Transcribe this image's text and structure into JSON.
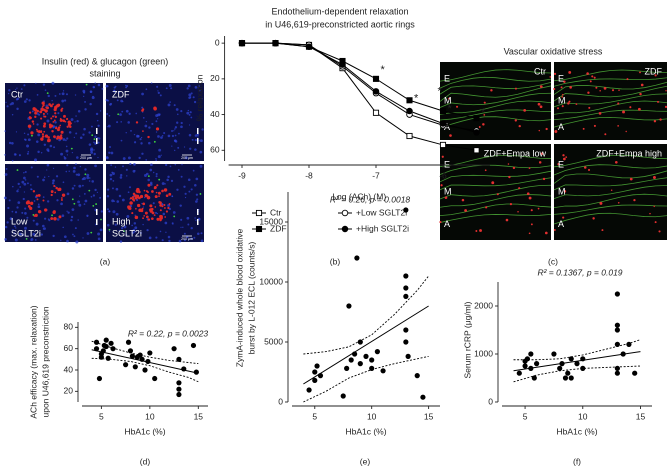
{
  "image_panels": {
    "a": {
      "title": [
        "Insulin (red) & glucagon (green)",
        "staining"
      ],
      "caption": "(a)",
      "tiles": [
        {
          "label": [
            "Ctr"
          ],
          "scale": "200 μm"
        },
        {
          "label": [
            "ZDF"
          ],
          "scale": "200 μm"
        },
        {
          "label": [
            "Low",
            "SGLT2i"
          ]
        },
        {
          "label": [
            "High",
            "SGLT2i"
          ],
          "scale": "200 μm"
        }
      ]
    },
    "c": {
      "title": [
        "Vascular oxidative stress"
      ],
      "caption": "(c)",
      "layers": [
        "E",
        "M",
        "A"
      ],
      "tiles": [
        {
          "label": [
            "Ctr"
          ]
        },
        {
          "label": [
            "ZDF"
          ]
        },
        {
          "label": [
            "ZDF+Empa low"
          ]
        },
        {
          "label": [
            "ZDF+Empa high"
          ]
        }
      ]
    }
  },
  "chart_data": [
    {
      "type": "line",
      "title": [
        "Endothelium-dependent relaxation",
        "in U46,619-preconstricted aortic rings"
      ],
      "ylabel": [
        "% relaxation"
      ],
      "xlabel": "Log (ACh) (M)",
      "caption": "(b)",
      "x": [
        -9,
        -8.5,
        -8,
        -7.5,
        -7,
        -6.5,
        -6,
        -5.5
      ],
      "xlim": [
        -9.2,
        -5.3
      ],
      "xticks": [
        -9,
        -8,
        -7,
        -6
      ],
      "ylim": [
        -4,
        66
      ],
      "yticks": [
        0,
        20,
        40,
        60
      ],
      "y_inverted": true,
      "series": [
        {
          "name": "Ctr",
          "color": "#000000",
          "marker": "square-open",
          "values": [
            0,
            0,
            1,
            14,
            39,
            52,
            57,
            60
          ]
        },
        {
          "name": "ZDF",
          "color": "#000000",
          "marker": "square",
          "values": [
            0,
            0,
            2,
            10,
            20,
            32,
            38,
            42
          ]
        },
        {
          "name": "+Low SGLT2i",
          "color": "#000000",
          "marker": "circle-open",
          "values": [
            0,
            0,
            1,
            13,
            28,
            40,
            46,
            49
          ]
        },
        {
          "name": "+High SGLT2i",
          "color": "#000000",
          "marker": "circle",
          "values": [
            0,
            0,
            2,
            12,
            27,
            38,
            45,
            50
          ]
        }
      ],
      "annotations": [
        {
          "text": "*",
          "x": -6.9,
          "y": 15
        },
        {
          "text": "*",
          "x": -6.4,
          "y": 31
        },
        {
          "text": "*",
          "x": -6.05,
          "y": 27
        },
        {
          "text": "*",
          "x": -5.9,
          "y": 37
        },
        {
          "text": "*",
          "x": -5.4,
          "y": 39
        }
      ]
    },
    {
      "type": "scatter",
      "ylabel": [
        "ACh efficacy (max. relaxation)",
        "upon U46,619 preconstriction"
      ],
      "xlabel": "HbA1c (%)",
      "caption": "(d)",
      "annotation": "R² = 0.22, p = 0.0023",
      "color": "#000000",
      "xlim": [
        3,
        16
      ],
      "xticks": [
        5,
        10,
        15
      ],
      "ylim": [
        10,
        85
      ],
      "yticks": [
        20,
        40,
        60,
        80
      ],
      "x": [
        4.5,
        4.5,
        4.8,
        5,
        5,
        5.2,
        5.3,
        5.5,
        5.5,
        5.7,
        6,
        6.2,
        7.5,
        7.8,
        8,
        8.2,
        8.5,
        8.7,
        9,
        9.2,
        9.5,
        9.8,
        10,
        10.5,
        12.5,
        13,
        13,
        13,
        13,
        13.5,
        14.5,
        14.8
      ],
      "values": [
        66,
        60,
        32,
        52,
        55,
        58,
        63,
        68,
        62,
        51,
        65,
        60,
        45,
        66,
        58,
        53,
        43,
        52,
        54,
        50,
        40,
        48,
        56,
        32,
        60,
        50,
        28,
        22,
        17,
        41,
        63,
        38
      ],
      "fit": {
        "x": [
          4,
          15
        ],
        "values": [
          59,
          37
        ]
      },
      "band": {
        "x": [
          4,
          6,
          8,
          10,
          12,
          14,
          15
        ],
        "upper": [
          67,
          61,
          56,
          52,
          49,
          47,
          46
        ],
        "lower": [
          51,
          50,
          48,
          44,
          38,
          33,
          29
        ]
      }
    },
    {
      "type": "scatter",
      "ylabel": [
        "ZymA-induced whole blood oxidative",
        "burst by L-012 ECL (counts/s)"
      ],
      "xlabel": "HbA1c (%)",
      "caption": "(e)",
      "annotation": "R² = 0.26, p = 0.0018",
      "color": "#000000",
      "xlim": [
        3,
        16
      ],
      "xticks": [
        5,
        10,
        15
      ],
      "ylim": [
        0,
        17500
      ],
      "yticks": [
        0,
        5000,
        10000,
        15000
      ],
      "x": [
        4.5,
        5,
        5,
        5.2,
        5.5,
        7.5,
        7.8,
        8,
        8.2,
        8.5,
        8.7,
        9,
        9,
        9.5,
        10,
        10,
        10.5,
        11,
        13,
        13,
        13,
        13,
        13,
        13,
        13.2,
        14,
        14.5
      ],
      "values": [
        1000,
        2500,
        1800,
        3000,
        2200,
        500,
        2800,
        8000,
        3500,
        4000,
        12000,
        5000,
        3200,
        3800,
        3500,
        2800,
        4200,
        2600,
        16000,
        10500,
        9500,
        8800,
        6000,
        5000,
        3800,
        2200,
        400
      ],
      "fit": {
        "x": [
          4,
          15
        ],
        "values": [
          1500,
          8000
        ]
      },
      "band": {
        "x": [
          4,
          6,
          8,
          10,
          12,
          14,
          15
        ],
        "upper": [
          4000,
          4200,
          4600,
          5600,
          7300,
          9300,
          10500
        ],
        "lower": [
          0,
          900,
          2000,
          2700,
          3200,
          3600,
          3800
        ]
      }
    },
    {
      "type": "scatter",
      "ylabel": [
        "Serum rCRP (μg/ml)"
      ],
      "xlabel": "HbA1c (%)",
      "caption": "(f)",
      "annotation": "R² = 0.1367, p = 0.019",
      "color": "#000000",
      "xlim": [
        3,
        16
      ],
      "xticks": [
        5,
        10,
        15
      ],
      "ylim": [
        0,
        2500
      ],
      "yticks": [
        0,
        1000,
        2000
      ],
      "x": [
        4.5,
        5,
        5,
        5.2,
        5.5,
        5.5,
        5.8,
        6,
        7.5,
        8,
        8.2,
        8.5,
        8.7,
        9,
        9,
        9.5,
        10,
        10,
        13,
        13,
        13,
        13,
        13,
        13,
        13.5,
        14,
        14.5
      ],
      "values": [
        600,
        750,
        850,
        900,
        1000,
        700,
        500,
        800,
        1000,
        700,
        800,
        500,
        600,
        500,
        900,
        800,
        900,
        700,
        2250,
        1600,
        1500,
        1200,
        700,
        600,
        1000,
        1200,
        600
      ],
      "fit": {
        "x": [
          4,
          15
        ],
        "values": [
          650,
          1050
        ]
      },
      "band": {
        "x": [
          4,
          6,
          8,
          10,
          12,
          14,
          15
        ],
        "upper": [
          880,
          880,
          900,
          980,
          1100,
          1220,
          1300
        ],
        "lower": [
          420,
          560,
          650,
          700,
          720,
          740,
          750
        ]
      }
    }
  ]
}
